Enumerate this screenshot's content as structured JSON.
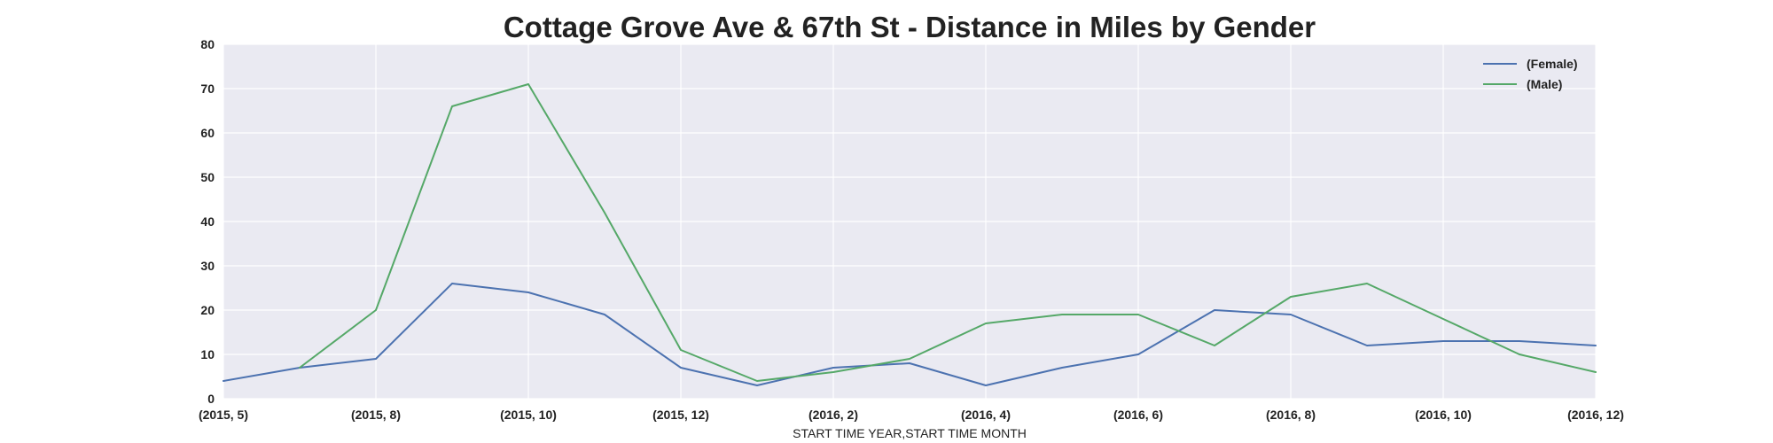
{
  "chart_data": {
    "type": "line",
    "title": "Cottage Grove Ave & 67th St - Distance in Miles by Gender",
    "xlabel": "START TIME YEAR,START TIME MONTH",
    "ylabel": "",
    "ylim": [
      0,
      80
    ],
    "yticks": [
      "0",
      "10",
      "20",
      "30",
      "40",
      "50",
      "60",
      "70",
      "80"
    ],
    "categories": [
      "(2015, 5)",
      "(2015, 7)",
      "(2015, 8)",
      "(2015, 9)",
      "(2015, 10)",
      "(2015, 11)",
      "(2015, 12)",
      "(2016, 1)",
      "(2016, 2)",
      "(2016, 3)",
      "(2016, 4)",
      "(2016, 5)",
      "(2016, 6)",
      "(2016, 7)",
      "(2016, 8)",
      "(2016, 9)",
      "(2016, 10)",
      "(2016, 11)",
      "(2016, 12)"
    ],
    "xtick_labels": [
      {
        "index": 0,
        "label": "(2015, 5)"
      },
      {
        "index": 2,
        "label": "(2015, 8)"
      },
      {
        "index": 4,
        "label": "(2015, 10)"
      },
      {
        "index": 6,
        "label": "(2015, 12)"
      },
      {
        "index": 8,
        "label": "(2016, 2)"
      },
      {
        "index": 10,
        "label": "(2016, 4)"
      },
      {
        "index": 12,
        "label": "(2016, 6)"
      },
      {
        "index": 14,
        "label": "(2016, 8)"
      },
      {
        "index": 16,
        "label": "(2016, 10)"
      },
      {
        "index": 18,
        "label": "(2016, 12)"
      }
    ],
    "series": [
      {
        "name": "(Female)",
        "color": "#4c72b0",
        "values": [
          4,
          7,
          9,
          26,
          24,
          19,
          7,
          3,
          7,
          8,
          3,
          7,
          10,
          20,
          19,
          12,
          13,
          13,
          12
        ]
      },
      {
        "name": "(Male)",
        "color": "#55a868",
        "values": [
          null,
          7,
          20,
          66,
          71,
          42,
          11,
          4,
          6,
          9,
          17,
          19,
          19,
          12,
          23,
          26,
          18,
          10,
          6
        ]
      }
    ],
    "grid": true,
    "legend_position": "top-right",
    "background_color": "#eaeaf2",
    "grid_color": "#ffffff"
  }
}
